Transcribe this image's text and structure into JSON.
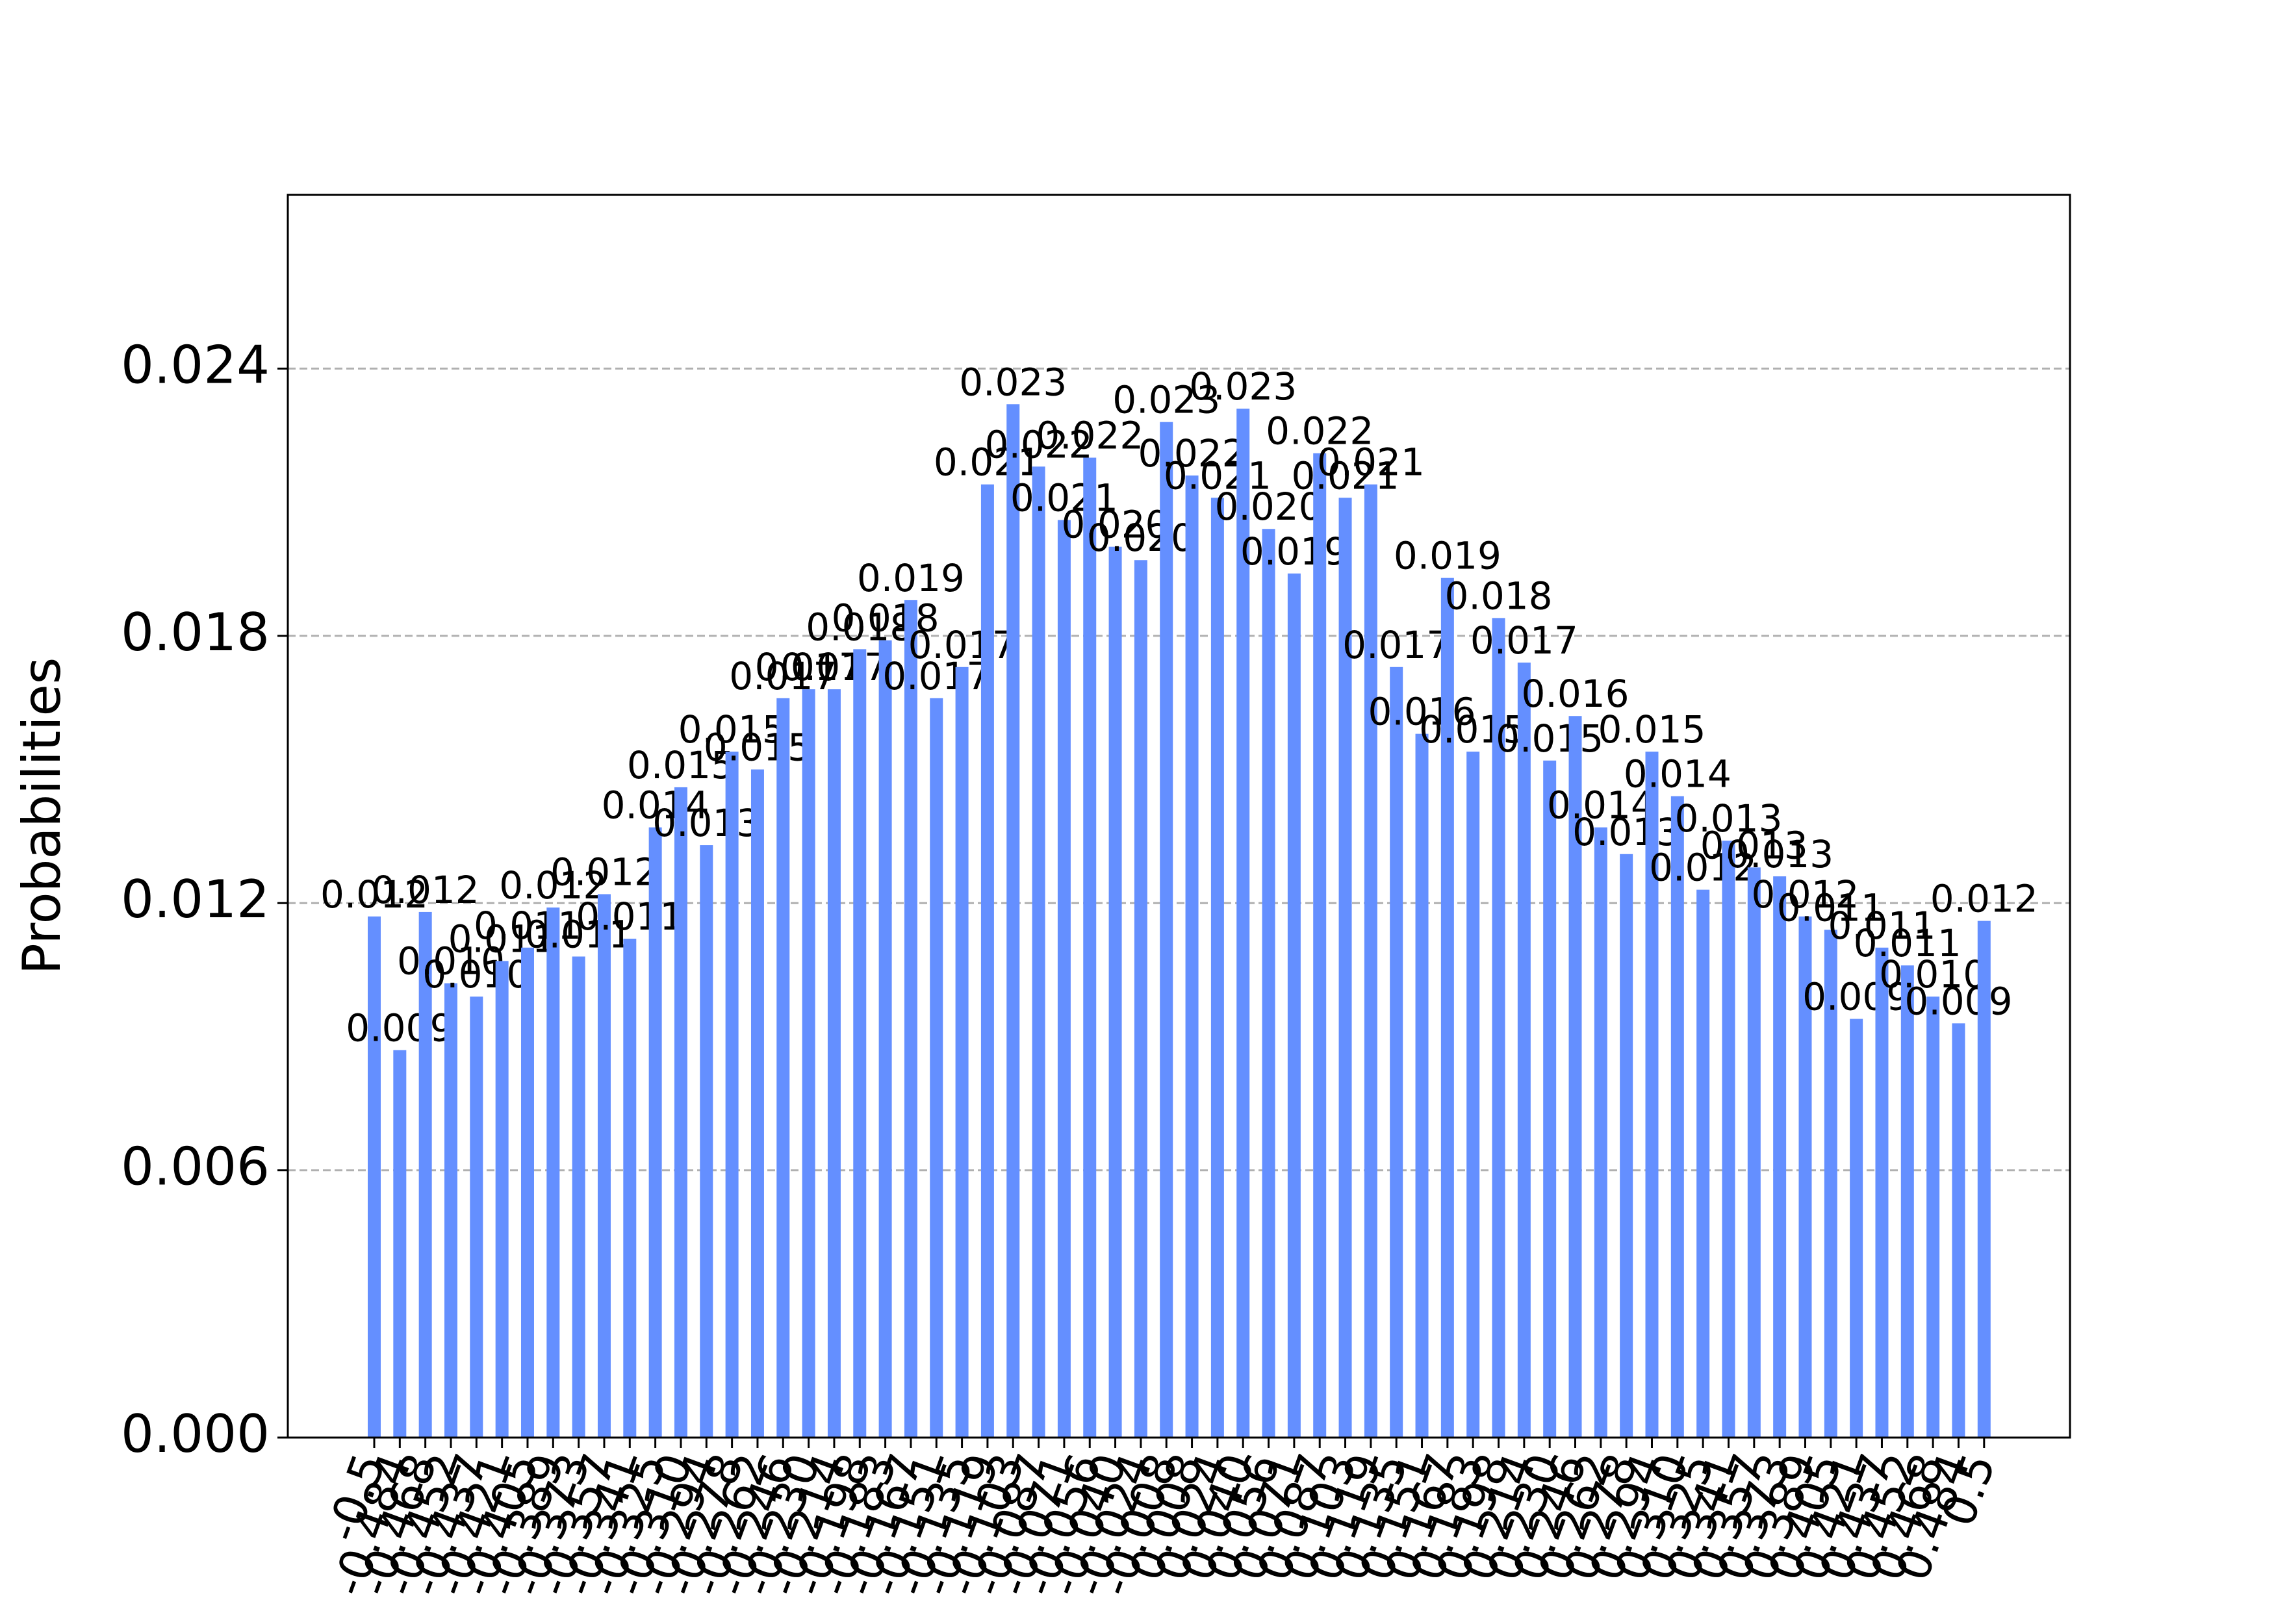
{
  "chart_data": {
    "type": "bar",
    "y_label": "Probabilities",
    "color": "#648fff",
    "grid": true,
    "categories": [
      "-0.5",
      "-0.484",
      "-0.468",
      "-0.452",
      "-0.437",
      "-0.421",
      "-0.405",
      "-0.389",
      "-0.373",
      "-0.357",
      "-0.341",
      "-0.325",
      "-0.310",
      "-0.294",
      "-0.278",
      "-0.262",
      "-0.246",
      "-0.230",
      "-0.214",
      "-0.198",
      "-0.183",
      "-0.167",
      "-0.151",
      "-0.135",
      "-0.119",
      "-0.103",
      "-0.087",
      "-0.071",
      "-0.056",
      "-0.040",
      "-0.024",
      "-0.008",
      "0.008",
      "0.024",
      "0.040",
      "0.056",
      "0.071",
      "0.087",
      "0.103",
      "0.119",
      "0.135",
      "0.151",
      "0.167",
      "0.183",
      "0.198",
      "0.214",
      "0.230",
      "0.246",
      "0.262",
      "0.278",
      "0.294",
      "0.310",
      "0.325",
      "0.341",
      "0.357",
      "0.373",
      "0.389",
      "0.405",
      "0.421",
      "0.437",
      "0.452",
      "0.468",
      "0.484",
      "0.5"
    ],
    "values": [
      0.0117,
      0.0087,
      0.0118,
      0.0102,
      0.0099,
      0.0107,
      0.011,
      0.0119,
      0.0108,
      0.0122,
      0.0112,
      0.0137,
      0.0146,
      0.0133,
      0.0154,
      0.015,
      0.0166,
      0.0168,
      0.0168,
      0.0177,
      0.0179,
      0.0188,
      0.0166,
      0.0173,
      0.0214,
      0.0232,
      0.0218,
      0.0206,
      0.022,
      0.02,
      0.0197,
      0.0228,
      0.0216,
      0.0211,
      0.0231,
      0.0204,
      0.0194,
      0.0221,
      0.0211,
      0.0214,
      0.0173,
      0.0158,
      0.0193,
      0.0154,
      0.0184,
      0.0174,
      0.0152,
      0.0162,
      0.0137,
      0.0131,
      0.0154,
      0.0144,
      0.0123,
      0.0134,
      0.0128,
      0.0126,
      0.0117,
      0.0114,
      0.0094,
      0.011,
      0.0106,
      0.0099,
      0.0093,
      0.0116
    ],
    "value_labels": [
      "0.012",
      "0.009",
      "0.012",
      "0.010",
      "0.010",
      "0.011",
      "0.011",
      "0.012",
      "0.011",
      "0.012",
      "0.011",
      "0.014",
      "0.015",
      "0.013",
      "0.015",
      "0.015",
      "0.017",
      "0.017",
      "0.017",
      "0.018",
      "0.018",
      "0.019",
      "0.017",
      "0.017",
      "0.021",
      "0.023",
      "0.022",
      "0.021",
      "0.022",
      "0.020",
      "0.020",
      "0.023",
      "0.022",
      "0.021",
      "0.023",
      "0.020",
      "0.019",
      "0.022",
      "0.021",
      "0.021",
      "0.017",
      "0.016",
      "0.019",
      "0.015",
      "0.018",
      "0.017",
      "0.015",
      "0.016",
      "0.014",
      "0.013",
      "0.015",
      "0.014",
      "0.012",
      "0.013",
      "0.013",
      "0.013",
      "0.012",
      "0.011",
      "0.009",
      "0.011",
      "0.011",
      "0.010",
      "0.009",
      "0.012"
    ],
    "ylim": [
      0,
      0.0279
    ],
    "yticks": [
      {
        "value": 0,
        "label": "0.000"
      },
      0.006,
      0.012,
      0.018,
      0.024
    ]
  }
}
